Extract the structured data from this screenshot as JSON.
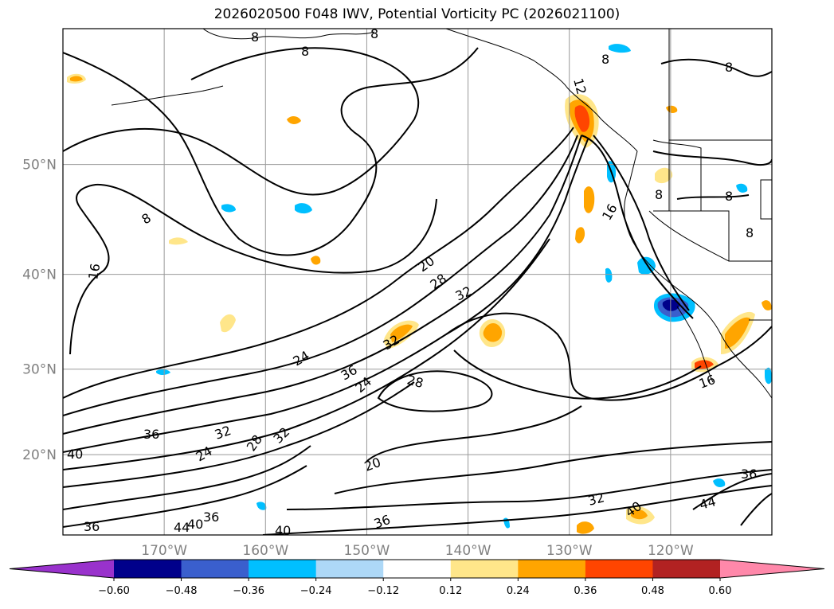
{
  "chart_data": {
    "type": "map-contour",
    "title": "2026020500 F048 IWV, Potential Vorticity PC (2026021100)",
    "x_axis": {
      "ticks": [
        "170°W",
        "160°W",
        "150°W",
        "140°W",
        "130°W",
        "120°W"
      ],
      "values": [
        -170,
        -160,
        -150,
        -140,
        -130,
        -120
      ],
      "range": [
        -180,
        -110
      ]
    },
    "y_axis": {
      "ticks": [
        "20°N",
        "30°N",
        "40°N",
        "50°N"
      ],
      "values": [
        20,
        30,
        40,
        50
      ],
      "range": [
        10,
        60
      ]
    },
    "grid": true,
    "iwv_contour_labels": [
      "8",
      "8",
      "8",
      "8",
      "8",
      "8",
      "8",
      "8",
      "8",
      "12",
      "16",
      "16",
      "16",
      "20",
      "20",
      "24",
      "24",
      "24",
      "28",
      "28",
      "28",
      "32",
      "32",
      "32",
      "32",
      "32",
      "36",
      "36",
      "36",
      "36",
      "36",
      "36",
      "40",
      "40",
      "40",
      "40",
      "44",
      "44"
    ],
    "colorbar": {
      "extend": "both",
      "ticks": [
        "−0.60",
        "−0.48",
        "−0.36",
        "−0.24",
        "−0.12",
        "0.12",
        "0.24",
        "0.36",
        "0.48",
        "0.60"
      ],
      "tick_values": [
        -0.6,
        -0.48,
        -0.36,
        -0.24,
        -0.12,
        0.12,
        0.24,
        0.36,
        0.48,
        0.6
      ],
      "colors": [
        "#9932cc",
        "#00008b",
        "#3a5fcd",
        "#00bfff",
        "#add8f7",
        "#ffffff",
        "#ffe68a",
        "#ffa500",
        "#ff4500",
        "#b22222",
        "#ff88aa"
      ]
    }
  }
}
